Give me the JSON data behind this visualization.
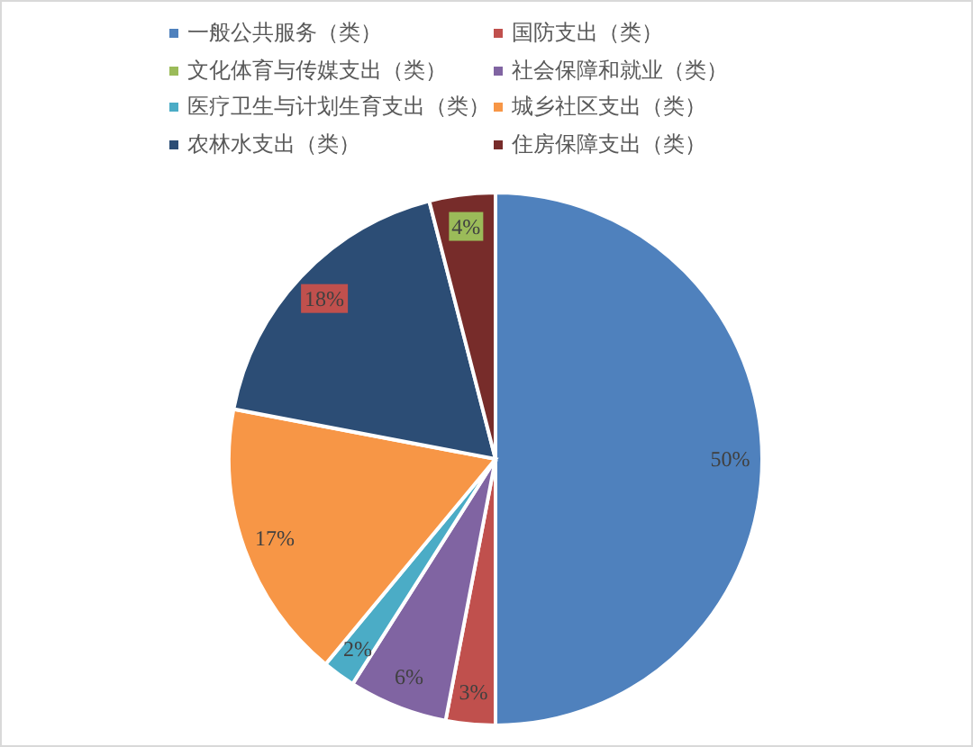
{
  "chart_data": {
    "type": "pie",
    "categories": [
      "一般公共服务（类）",
      "国防支出（类）",
      "文化体育与传媒支出（类）",
      "社会保障和就业（类）",
      "医疗卫生与计划生育支出（类）",
      "城乡社区支出（类）",
      "农林水支出（类）",
      "住房保障支出（类）"
    ],
    "values": [
      50,
      3,
      0,
      6,
      2,
      17,
      18,
      4
    ],
    "colors": [
      "#4f81bd",
      "#c0504d",
      "#9bbb59",
      "#8064a2",
      "#4bacc6",
      "#f79646",
      "#2c4d75",
      "#772c2a"
    ],
    "value_labels": [
      "50%",
      "3%",
      null,
      "6%",
      "2%",
      "17%",
      "18%",
      "4%"
    ],
    "legend": "top"
  }
}
